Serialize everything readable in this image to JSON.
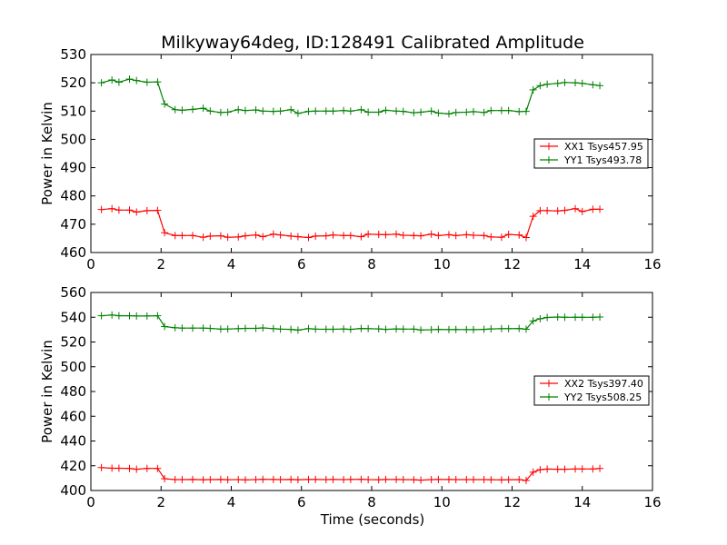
{
  "figure": {
    "title": "Milkyway64deg, ID:128491 Calibrated Amplitude",
    "xlabel": "Time (seconds)"
  },
  "chart_data": [
    {
      "type": "line",
      "panel": "top",
      "ylabel": "Power in Kelvin",
      "xlim": [
        0,
        16
      ],
      "ylim": [
        460,
        530
      ],
      "xticks": [
        0,
        2,
        4,
        6,
        8,
        10,
        12,
        14,
        16
      ],
      "yticks": [
        460,
        470,
        480,
        490,
        500,
        510,
        520,
        530
      ],
      "legend_position": "right",
      "x": [
        0.3,
        0.6,
        0.8,
        1.1,
        1.3,
        1.6,
        1.9,
        2.1,
        2.4,
        2.6,
        2.9,
        3.2,
        3.4,
        3.7,
        3.9,
        4.2,
        4.4,
        4.7,
        4.9,
        5.2,
        5.4,
        5.7,
        5.9,
        6.2,
        6.4,
        6.7,
        6.9,
        7.2,
        7.4,
        7.7,
        7.9,
        8.2,
        8.4,
        8.7,
        8.9,
        9.2,
        9.4,
        9.7,
        9.9,
        10.2,
        10.4,
        10.7,
        10.9,
        11.2,
        11.4,
        11.7,
        11.9,
        12.2,
        12.4,
        12.6,
        12.8,
        13.0,
        13.3,
        13.5,
        13.8,
        14.0,
        14.3,
        14.5
      ],
      "series": [
        {
          "name": "XX1 Tsys457.95",
          "color": "#ff0000",
          "values": [
            475.2,
            475.5,
            475.0,
            475.0,
            474.3,
            474.8,
            474.9,
            467.0,
            466.0,
            466.0,
            466.0,
            465.4,
            465.8,
            465.9,
            465.4,
            465.5,
            465.9,
            466.2,
            465.6,
            466.5,
            466.2,
            465.8,
            465.6,
            465.3,
            465.8,
            465.9,
            466.2,
            466.0,
            466.0,
            465.6,
            466.5,
            466.4,
            466.3,
            466.5,
            466.1,
            466.0,
            465.9,
            466.5,
            466.0,
            466.3,
            466.0,
            466.3,
            466.1,
            466.0,
            465.5,
            465.4,
            466.4,
            466.2,
            465.3,
            472.8,
            474.8,
            474.8,
            474.7,
            474.9,
            475.5,
            474.5,
            475.3,
            475.3
          ],
          "markers": true
        },
        {
          "name": "YY1 Tsys493.78",
          "color": "#008000",
          "values": [
            520.0,
            521.0,
            520.2,
            521.3,
            520.8,
            520.2,
            520.3,
            512.5,
            510.5,
            510.3,
            510.6,
            511.0,
            510.0,
            509.5,
            509.6,
            510.5,
            510.2,
            510.4,
            510.0,
            509.9,
            510.0,
            510.5,
            509.2,
            509.9,
            510.0,
            510.0,
            510.0,
            510.2,
            510.0,
            510.5,
            509.6,
            509.6,
            510.3,
            510.0,
            509.9,
            509.4,
            509.6,
            510.0,
            509.3,
            509.0,
            509.5,
            509.6,
            509.8,
            509.5,
            510.2,
            510.2,
            510.2,
            509.8,
            509.9,
            517.5,
            519.0,
            519.5,
            519.8,
            520.1,
            520.0,
            519.8,
            519.3,
            519.0
          ],
          "markers": true
        }
      ]
    },
    {
      "type": "line",
      "panel": "bottom",
      "ylabel": "Power in Kelvin",
      "xlabel": "Time (seconds)",
      "xlim": [
        0,
        16
      ],
      "ylim": [
        400,
        560
      ],
      "xticks": [
        0,
        2,
        4,
        6,
        8,
        10,
        12,
        14,
        16
      ],
      "yticks": [
        400,
        420,
        440,
        460,
        480,
        500,
        520,
        540,
        560
      ],
      "legend_position": "right",
      "x": [
        0.3,
        0.6,
        0.8,
        1.1,
        1.3,
        1.6,
        1.9,
        2.1,
        2.4,
        2.6,
        2.9,
        3.2,
        3.4,
        3.7,
        3.9,
        4.2,
        4.4,
        4.7,
        4.9,
        5.2,
        5.4,
        5.7,
        5.9,
        6.2,
        6.4,
        6.7,
        6.9,
        7.2,
        7.4,
        7.7,
        7.9,
        8.2,
        8.4,
        8.7,
        8.9,
        9.2,
        9.4,
        9.7,
        9.9,
        10.2,
        10.4,
        10.7,
        10.9,
        11.2,
        11.4,
        11.7,
        11.9,
        12.2,
        12.4,
        12.6,
        12.8,
        13.0,
        13.3,
        13.5,
        13.8,
        14.0,
        14.3,
        14.5
      ],
      "series": [
        {
          "name": "XX2 Tsys397.40",
          "color": "#ff0000",
          "values": [
            418.5,
            418.0,
            418.0,
            417.8,
            417.2,
            417.8,
            417.8,
            409.5,
            408.8,
            408.8,
            408.9,
            408.7,
            408.8,
            408.9,
            408.7,
            408.8,
            408.6,
            408.8,
            409.0,
            408.9,
            408.8,
            408.9,
            408.7,
            408.9,
            408.9,
            408.8,
            408.9,
            408.8,
            408.9,
            409.0,
            408.8,
            408.7,
            408.9,
            408.9,
            408.8,
            408.7,
            408.4,
            408.8,
            408.9,
            408.9,
            408.8,
            408.8,
            408.8,
            408.8,
            408.7,
            408.6,
            408.7,
            408.8,
            408.1,
            414.8,
            416.8,
            417.3,
            417.2,
            417.2,
            417.4,
            417.4,
            417.4,
            417.8
          ],
          "markers": true
        },
        {
          "name": "YY2 Tsys508.25",
          "color": "#008000",
          "values": [
            541.2,
            541.8,
            541.2,
            541.2,
            541.0,
            541.0,
            541.2,
            532.5,
            531.5,
            531.2,
            531.2,
            531.2,
            531.0,
            530.4,
            530.5,
            530.8,
            531.0,
            531.0,
            531.4,
            530.8,
            530.4,
            530.2,
            529.6,
            530.8,
            530.4,
            530.3,
            530.3,
            530.5,
            530.2,
            530.9,
            530.8,
            530.6,
            530.2,
            530.6,
            530.4,
            530.4,
            529.7,
            529.9,
            530.2,
            530.0,
            530.1,
            530.0,
            530.0,
            530.2,
            530.6,
            530.8,
            530.8,
            530.9,
            530.3,
            537.0,
            538.8,
            539.8,
            540.2,
            540.0,
            540.0,
            540.0,
            540.0,
            540.2
          ],
          "markers": true
        }
      ]
    }
  ]
}
